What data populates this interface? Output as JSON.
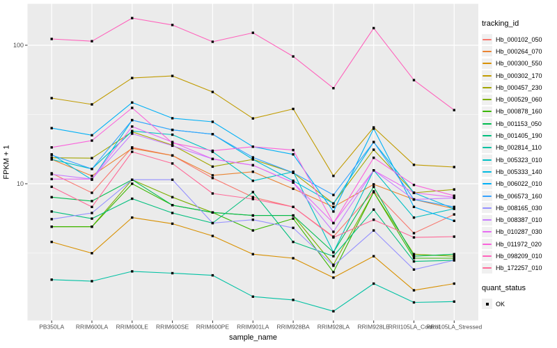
{
  "chart_data": {
    "type": "line",
    "title": "",
    "xlabel": "sample_name",
    "ylabel": "FPKM + 1",
    "y_scale": "log10",
    "ylim": [
      1,
      200
    ],
    "grid": true,
    "panel_bg": "#EBEBEB",
    "grid_color": "#FFFFFF",
    "marker": "black-square",
    "y_ticks": [
      10,
      100
    ],
    "y_tick_labels": [
      "10",
      "100"
    ],
    "y_minor_ticks": [
      3.162,
      31.62
    ],
    "categories": [
      "PB350LA",
      "RRIM600LA",
      "RRIM600LE",
      "RRIM600SE",
      "RRIM600PE",
      "RRIM901LA",
      "RRIM928BA",
      "RRIM928LA",
      "RRIM928LE",
      "RRII105LA_Control",
      "RRII105LA_Stressed"
    ],
    "series": [
      {
        "name": "Hb_000102_050",
        "color": "#F8766D",
        "values": [
          11.9,
          8.6,
          18.3,
          16,
          11,
          8,
          6.8,
          4.15,
          8.8,
          4.4,
          6
        ]
      },
      {
        "name": "Hb_000264_070",
        "color": "#EA8331",
        "values": [
          15,
          11.4,
          18,
          16,
          11.5,
          12.2,
          9.2,
          6.8,
          9.9,
          7.7,
          6.6
        ]
      },
      {
        "name": "Hb_000300_550",
        "color": "#D89000",
        "values": [
          3.8,
          3.15,
          5.7,
          5.15,
          4.2,
          3.1,
          2.9,
          2.1,
          3,
          1.7,
          1.9
        ]
      },
      {
        "name": "Hb_000302_170",
        "color": "#C09B00",
        "values": [
          41.5,
          37.4,
          58,
          60,
          46,
          29.6,
          34.7,
          11.4,
          25.5,
          13.7,
          13.2
        ]
      },
      {
        "name": "Hb_000457_230",
        "color": "#A3A500",
        "values": [
          15.4,
          15.3,
          23.7,
          19,
          13.3,
          15,
          12,
          7.2,
          17.6,
          8.6,
          9.1
        ]
      },
      {
        "name": "Hb_000529_060",
        "color": "#7CAE00",
        "values": [
          4.9,
          4.9,
          10.7,
          8,
          6.2,
          5.9,
          5.9,
          2.6,
          8.7,
          3.1,
          3
        ]
      },
      {
        "name": "Hb_000878_160",
        "color": "#39B600",
        "values": [
          4.9,
          4.9,
          10,
          7,
          6.2,
          4.6,
          5.6,
          2.3,
          8.7,
          2.9,
          2.9
        ]
      },
      {
        "name": "Hb_001153_050",
        "color": "#00BB4E",
        "values": [
          8,
          7.5,
          10.7,
          7,
          6.2,
          5.9,
          5.9,
          3.2,
          9.5,
          3,
          3.1
        ]
      },
      {
        "name": "Hb_001405_190",
        "color": "#00BF7D",
        "values": [
          6.3,
          5.6,
          7.8,
          6.15,
          5.2,
          8.7,
          3.8,
          3,
          6.5,
          2.75,
          2.8
        ]
      },
      {
        "name": "Hb_002814_110",
        "color": "#00C1A3",
        "values": [
          2.03,
          1.98,
          2.33,
          2.26,
          2.18,
          1.53,
          1.45,
          1.2,
          1.9,
          1.39,
          1.41
        ]
      },
      {
        "name": "Hb_005323_010",
        "color": "#00BFC4",
        "values": [
          15,
          12.8,
          24,
          22.6,
          17,
          10.5,
          12.2,
          3.2,
          12.5,
          5.7,
          6.6
        ]
      },
      {
        "name": "Hb_005333_140",
        "color": "#00BAE0",
        "values": [
          16.3,
          10.7,
          28.8,
          24.5,
          22.8,
          15,
          10.5,
          7.2,
          20,
          8.6,
          6.6
        ]
      },
      {
        "name": "Hb_006022_010",
        "color": "#00B0F6",
        "values": [
          25.2,
          22.4,
          38.6,
          29.7,
          28,
          18.5,
          16.3,
          6.3,
          25,
          6.8,
          5.4
        ]
      },
      {
        "name": "Hb_006573_160",
        "color": "#35A2FF",
        "values": [
          16.1,
          12.8,
          28.8,
          24.5,
          22.8,
          15.5,
          12,
          8.3,
          20,
          7.7,
          6.8
        ]
      },
      {
        "name": "Hb_008165_030",
        "color": "#9590FF",
        "values": [
          5.55,
          6.15,
          10.7,
          10.7,
          5.2,
          5.5,
          4.8,
          2.56,
          4.6,
          2.4,
          2.8
        ]
      },
      {
        "name": "Hb_008387_010",
        "color": "#C77CFF",
        "values": [
          11.7,
          10.8,
          23,
          18.8,
          15.1,
          13.6,
          10.2,
          4.5,
          12.5,
          7.7,
          7.9
        ]
      },
      {
        "name": "Hb_010287_030",
        "color": "#E76BF3",
        "values": [
          10.8,
          10.8,
          25.9,
          20,
          15.1,
          13.6,
          10.2,
          5.2,
          12.5,
          8.6,
          8
        ]
      },
      {
        "name": "Hb_011972_020",
        "color": "#FA62DB",
        "values": [
          18.3,
          20.5,
          35.3,
          19.7,
          17.3,
          18.5,
          17.5,
          5.2,
          15.4,
          9.8,
          8.2
        ]
      },
      {
        "name": "Hb_098209_010",
        "color": "#FF62BC",
        "values": [
          111,
          107,
          157,
          140,
          106,
          123,
          83,
          49,
          133,
          56,
          34
        ]
      },
      {
        "name": "Hb_172257_010",
        "color": "#FF6A98",
        "values": [
          9.5,
          6.8,
          17,
          14,
          8.5,
          7.75,
          6.8,
          4.1,
          5.5,
          4.1,
          4.15
        ]
      }
    ]
  },
  "legend": {
    "tracking_title": "tracking_id",
    "quant_title": "quant_status",
    "quant_items": [
      {
        "label": "OK",
        "marker": "black-square"
      }
    ]
  }
}
